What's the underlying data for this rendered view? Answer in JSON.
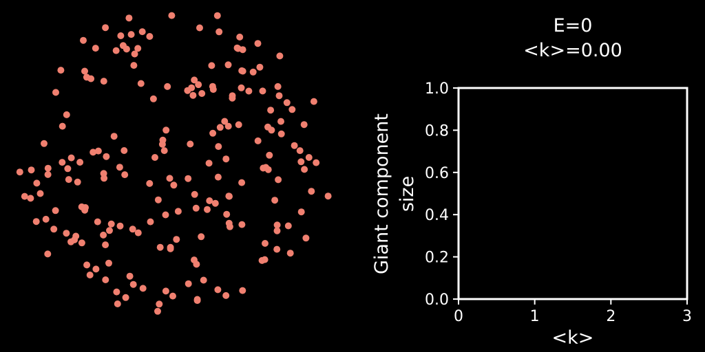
{
  "network": {
    "node_count": 200,
    "edge_count": 0,
    "node_color": "#f08070",
    "background": "#000000",
    "layout": "circular random scatter"
  },
  "chart_data": {
    "type": "line",
    "title_line1": "E=0",
    "title_line2": "<k>=0.00",
    "xlabel": "<k>",
    "ylabel_line1": "Giant component",
    "ylabel_line2": "size",
    "xlim": [
      0,
      3
    ],
    "ylim": [
      0,
      1.0
    ],
    "x_ticks": [
      "0",
      "1",
      "2",
      "3"
    ],
    "y_ticks": [
      "0.0",
      "0.2",
      "0.4",
      "0.6",
      "0.8",
      "1.0"
    ],
    "series": [
      {
        "x": [],
        "y": []
      }
    ],
    "grid": false,
    "colors": {
      "axes": "#ffffff",
      "text": "#ffffff",
      "background": "#000000"
    }
  }
}
